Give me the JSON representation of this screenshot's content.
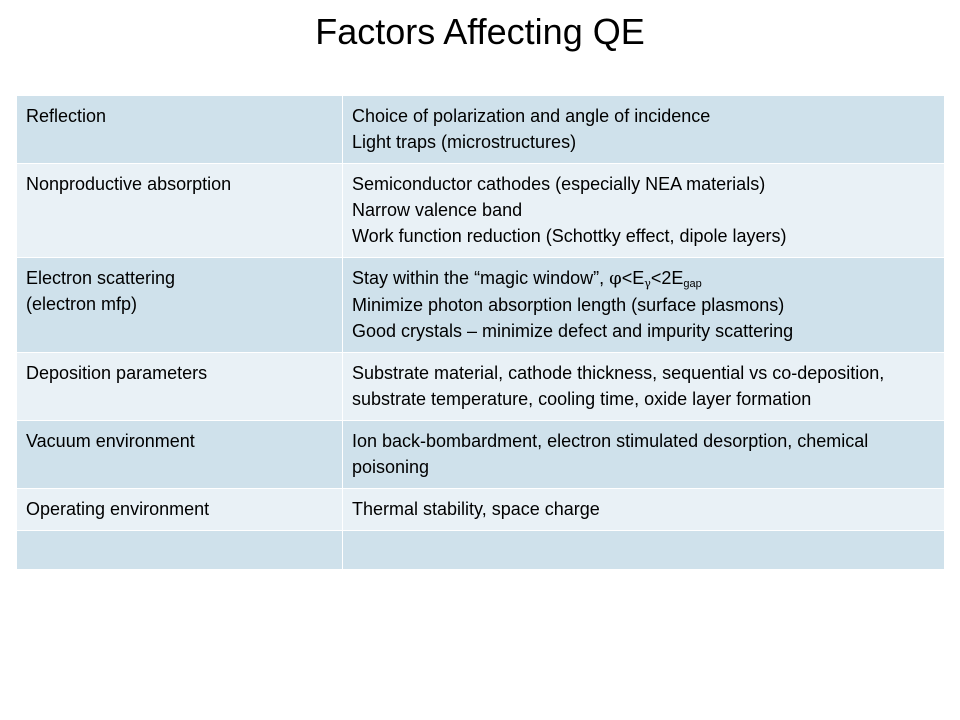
{
  "title": "Factors Affecting QE",
  "rows": [
    {
      "factor": [
        "Reflection"
      ],
      "remedies": [
        "Choice of polarization and angle of incidence",
        "Light traps (microstructures)"
      ]
    },
    {
      "factor": [
        "Nonproductive absorption"
      ],
      "remedies": [
        "Semiconductor cathodes (especially NEA materials)",
        "Narrow valence band",
        "Work function reduction (Schottky effect,  dipole layers)"
      ]
    },
    {
      "factor": [
        "Electron scattering",
        "(electron mfp)"
      ],
      "remedies": [
        "Stay within the “magic window”,",
        "Minimize photon absorption length (surface plasmons)",
        "Good crystals – minimize defect and impurity scattering"
      ],
      "window": {
        "phi": "φ",
        "lt1": "<E",
        "gamma": "γ",
        "lt2": "<2E",
        "gap": "gap"
      }
    },
    {
      "factor": [
        "Deposition parameters"
      ],
      "remedies": [
        "Substrate material, cathode thickness, sequential vs co-deposition, substrate temperature, cooling time, oxide layer formation"
      ]
    },
    {
      "factor": [
        "Vacuum environment"
      ],
      "remedies": [
        "Ion back-bombardment, electron stimulated desorption, chemical poisoning"
      ]
    },
    {
      "factor": [
        "Operating environment"
      ],
      "remedies": [
        "Thermal stability, space charge"
      ]
    },
    {
      "factor": [
        ""
      ],
      "remedies": [
        ""
      ]
    }
  ]
}
